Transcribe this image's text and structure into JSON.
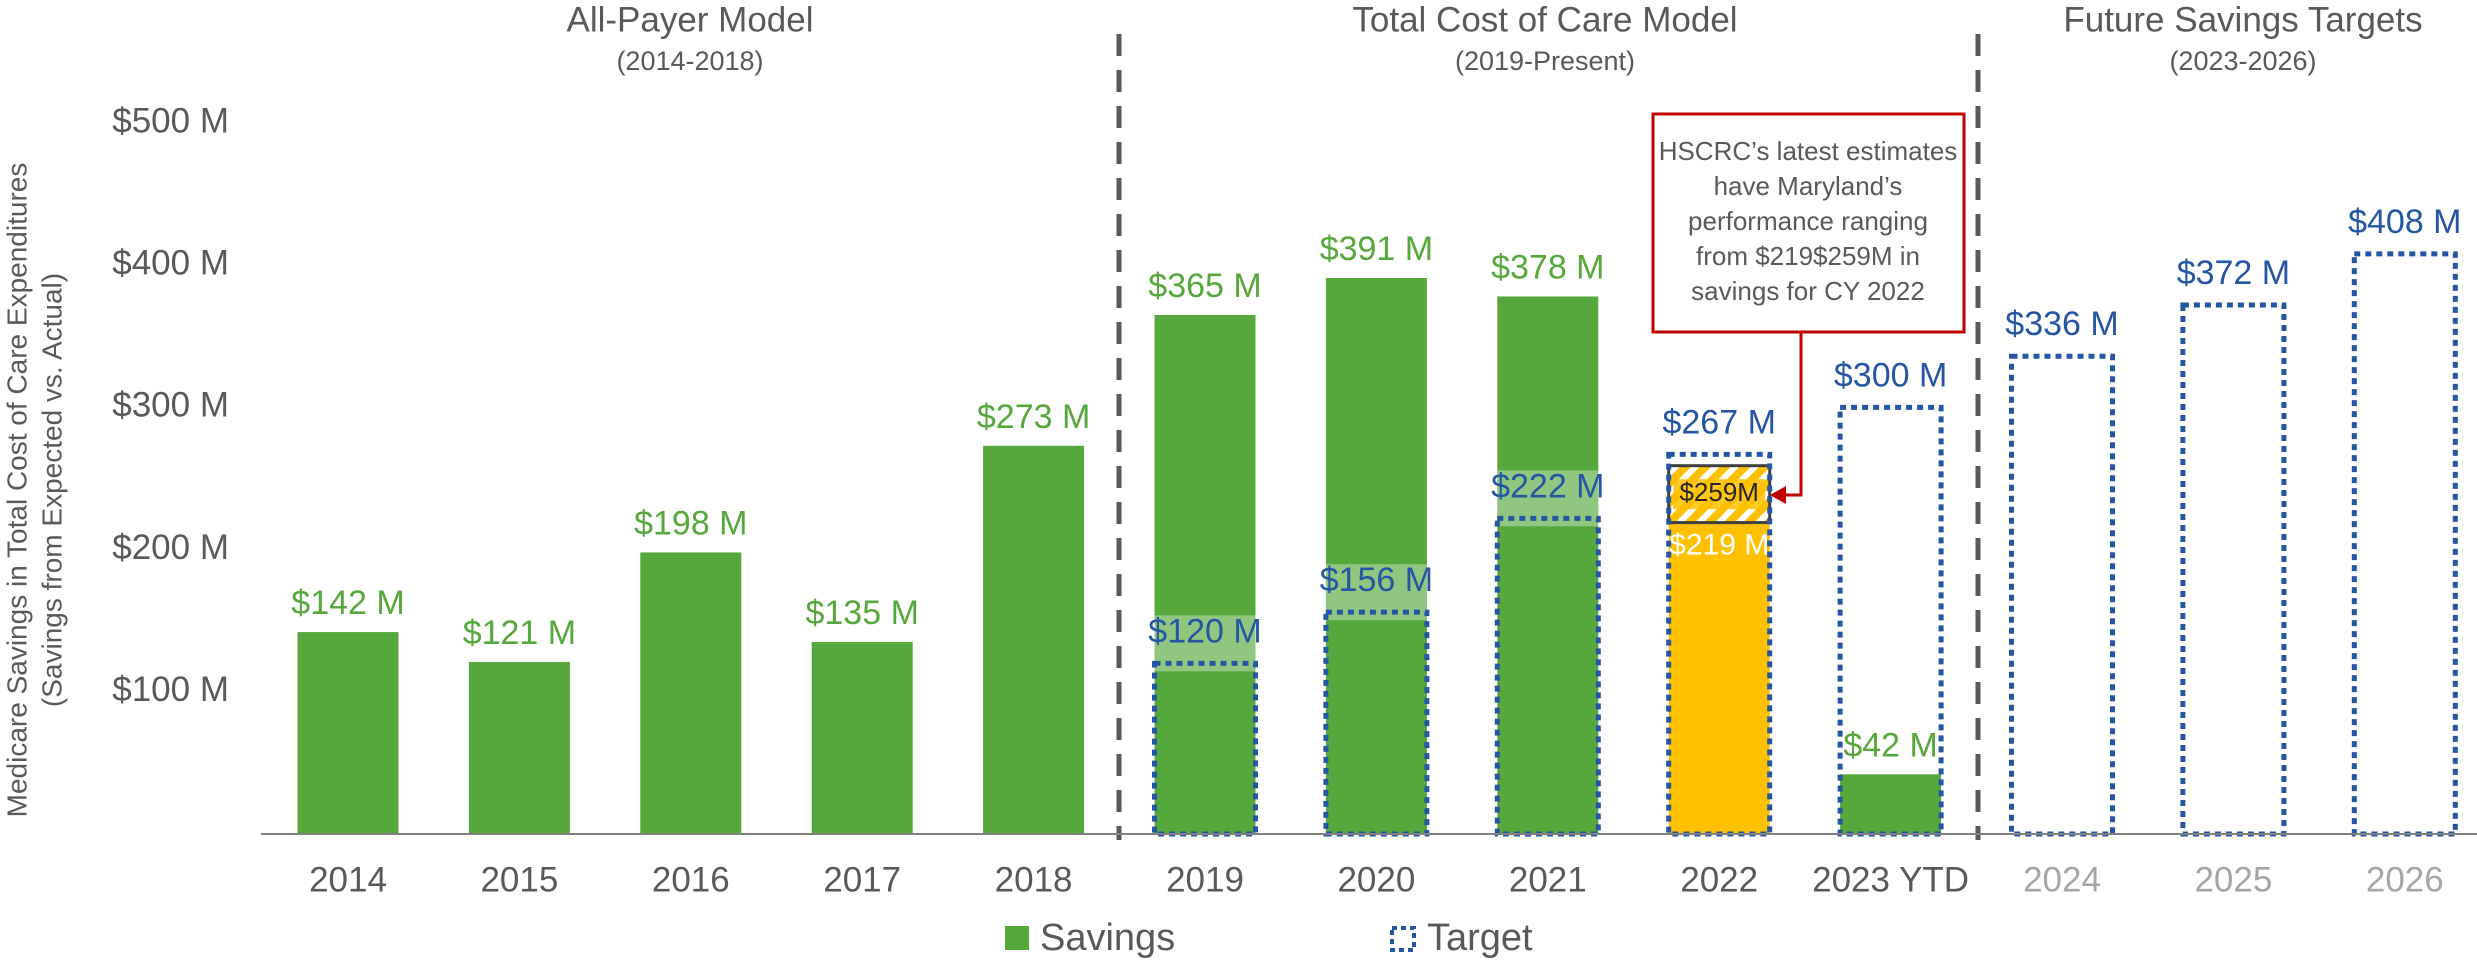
{
  "chart_data": {
    "type": "bar",
    "y_axis_label": [
      "Medicare Savings in Total Cost of Care Expenditures",
      "(Savings from Expected vs. Actual)"
    ],
    "sections": [
      {
        "title": "All-Payer Model",
        "subtitle": "(2014-2018)"
      },
      {
        "title": "Total Cost of Care Model",
        "subtitle": "(2019-Present)"
      },
      {
        "title": "Future Savings Targets",
        "subtitle": "(2023-2026)"
      }
    ],
    "categories": [
      "2014",
      "2015",
      "2016",
      "2017",
      "2018",
      "2019",
      "2020",
      "2021",
      "2022",
      "2023 YTD",
      "2024",
      "2025",
      "2026"
    ],
    "category_label_colors": [
      "#595959",
      "#595959",
      "#595959",
      "#595959",
      "#595959",
      "#595959",
      "#595959",
      "#595959",
      "#595959",
      "#595959",
      "#a6a6a6",
      "#a6a6a6",
      "#a6a6a6"
    ],
    "series": [
      {
        "name": "Savings",
        "color": "#56a83c",
        "values": [
          142,
          121,
          198,
          135,
          273,
          365,
          391,
          378,
          null,
          42,
          null,
          null,
          null
        ],
        "value_labels": [
          "$142 M",
          "$121 M",
          "$198 M",
          "$135 M",
          "$273 M",
          "$365 M",
          "$391 M",
          "$378 M",
          null,
          "$42 M",
          null,
          null,
          null
        ]
      },
      {
        "name": "Target",
        "color": "#2456a4",
        "values": [
          null,
          null,
          null,
          null,
          null,
          120,
          156,
          222,
          267,
          300,
          336,
          372,
          408
        ],
        "value_labels": [
          null,
          null,
          null,
          null,
          null,
          "$120 M",
          "$156 M",
          "$222 M",
          "$267 M",
          "$300 M",
          "$336 M",
          "$372 M",
          "$408 M"
        ]
      }
    ],
    "estimate": {
      "category": "2022",
      "color": "#ffc000",
      "low": 219,
      "high": 259,
      "low_label": "$219 M",
      "high_label": "$259M"
    },
    "annotation": [
      "HSCRC’s latest estimates",
      "have Maryland’s",
      "performance ranging",
      "from $219$259M in",
      "savings for CY 2022"
    ],
    "ylim": [
      0,
      500
    ],
    "yticks": [
      {
        "value": 100,
        "label": "$100 M"
      },
      {
        "value": 200,
        "label": "$200 M"
      },
      {
        "value": 300,
        "label": "$300 M"
      },
      {
        "value": 400,
        "label": "$400 M"
      },
      {
        "value": 500,
        "label": "$500 M"
      }
    ],
    "grid": false
  }
}
